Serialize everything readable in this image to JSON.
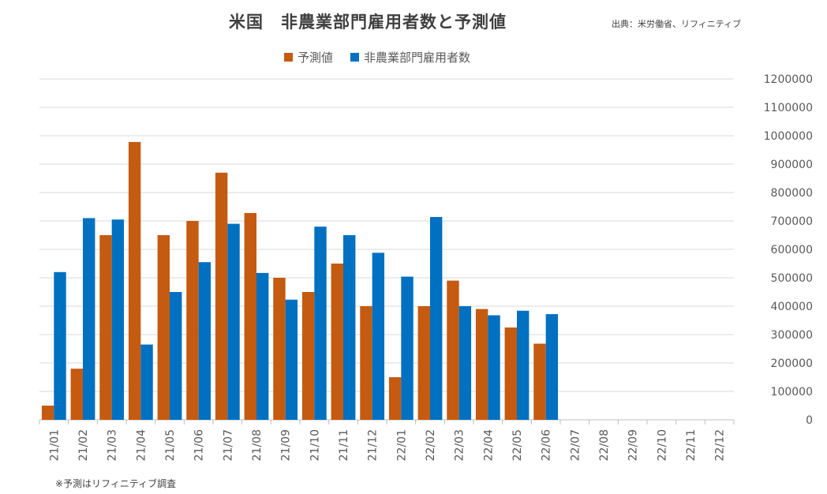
{
  "title": "米国　非農業部門雇用者数と予測値",
  "source": "出典：米労働省、リフィニティブ",
  "note": "※予測はリフィニティブ調査",
  "colors": {
    "forecast": "#C55A11",
    "actual": "#0070C0",
    "grid": "#D9D9D9",
    "axis_text": "#595959"
  },
  "legend": {
    "forecast_label": "予測値",
    "actual_label": "非農業部門雇用者数"
  },
  "chart_data": {
    "type": "bar",
    "categories": [
      "21/01",
      "21/02",
      "21/03",
      "21/04",
      "21/05",
      "21/06",
      "21/07",
      "21/08",
      "21/09",
      "21/10",
      "21/11",
      "21/12",
      "22/01",
      "22/02",
      "22/03",
      "22/04",
      "22/05",
      "22/06",
      "22/07",
      "22/08",
      "22/09",
      "22/10",
      "22/11",
      "22/12"
    ],
    "series": [
      {
        "name": "予測値",
        "values": [
          50000,
          180000,
          650000,
          978000,
          650000,
          700000,
          870000,
          728000,
          500000,
          450000,
          550000,
          400000,
          150000,
          400000,
          490000,
          390000,
          325000,
          268000,
          null,
          null,
          null,
          null,
          null,
          null
        ]
      },
      {
        "name": "非農業部門雇用者数",
        "values": [
          520000,
          710000,
          705000,
          265000,
          450000,
          555000,
          690000,
          517000,
          423000,
          680000,
          650000,
          588000,
          504000,
          714000,
          400000,
          368000,
          384000,
          372000,
          null,
          null,
          null,
          null,
          null,
          null
        ]
      }
    ],
    "ylim": [
      0,
      1200000
    ],
    "yticks": [
      0,
      100000,
      200000,
      300000,
      400000,
      500000,
      600000,
      700000,
      800000,
      900000,
      1000000,
      1100000,
      1200000
    ],
    "y_axis_position": "right",
    "grid": true,
    "legend_position": "top"
  }
}
